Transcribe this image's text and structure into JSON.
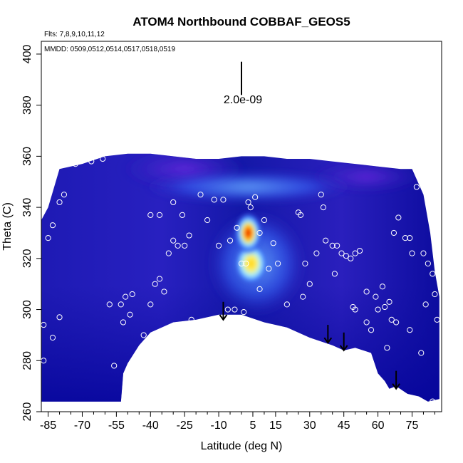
{
  "chart_data": {
    "type": "heatmap",
    "title": "ATOM4 Northbound COBBAF_GEOS5",
    "annotations": {
      "flights": "Flts: 7,8,9,10,11,12",
      "dates": "MMDD: 0509,0512,0514,0517,0518,0519",
      "scale_label": "2.0e-09"
    },
    "xlabel": "Latitude (deg N)",
    "ylabel": "Theta (C)",
    "xlim": [
      -88,
      88
    ],
    "ylim": [
      260,
      405
    ],
    "x_ticks": [
      -85,
      -70,
      -55,
      -40,
      -25,
      -10,
      5,
      15,
      30,
      45,
      60,
      75
    ],
    "x_tick_labels": [
      "-85",
      "-70",
      "-55",
      "-40",
      "-25",
      "-10",
      "5",
      "15",
      "30",
      "45",
      "60",
      "75"
    ],
    "x_minor_ticks": [
      -80,
      -75,
      -65,
      -60,
      -50,
      -45,
      -35,
      -30,
      -20,
      -15,
      -5,
      0,
      10,
      20,
      25,
      35,
      40,
      50,
      55,
      65,
      70,
      80,
      85
    ],
    "y_ticks": [
      260,
      280,
      300,
      320,
      340,
      360,
      380,
      400
    ],
    "y_tick_labels": [
      "260",
      "280",
      "300",
      "320",
      "340",
      "360",
      "380",
      "400"
    ],
    "scale_bar": {
      "x": 0,
      "y_top": 397,
      "y_bottom": 384
    },
    "colors": {
      "background_field": "#2a1fb8",
      "deep": "#0b0aa0",
      "plume_core": "#d40000",
      "plume_mid": "#ffe020",
      "plume_edge": "#5aa0ff",
      "sample_marker": "#ffffff"
    },
    "field_outline": {
      "top": [
        [
          -88,
          335
        ],
        [
          -85,
          340
        ],
        [
          -80,
          355
        ],
        [
          -70,
          357
        ],
        [
          -60,
          360
        ],
        [
          -50,
          361
        ],
        [
          -40,
          361
        ],
        [
          -30,
          360
        ],
        [
          -20,
          359
        ],
        [
          -10,
          359
        ],
        [
          0,
          360
        ],
        [
          10,
          360
        ],
        [
          20,
          359
        ],
        [
          30,
          359
        ],
        [
          40,
          358
        ],
        [
          50,
          357
        ],
        [
          60,
          356
        ],
        [
          70,
          355
        ],
        [
          75,
          355
        ],
        [
          80,
          345
        ],
        [
          83,
          330
        ],
        [
          85,
          315
        ],
        [
          87,
          305
        ]
      ],
      "bottom": [
        [
          87,
          265
        ],
        [
          82,
          264
        ],
        [
          78,
          266
        ],
        [
          73,
          267
        ],
        [
          68,
          270
        ],
        [
          65,
          269
        ],
        [
          63,
          272
        ],
        [
          60,
          275
        ],
        [
          57,
          283
        ],
        [
          50,
          285
        ],
        [
          45,
          284
        ],
        [
          40,
          286
        ],
        [
          30,
          289
        ],
        [
          20,
          293
        ],
        [
          10,
          295
        ],
        [
          0,
          298
        ],
        [
          -5,
          298
        ],
        [
          -10,
          298
        ],
        [
          -20,
          296
        ],
        [
          -30,
          295
        ],
        [
          -40,
          291
        ],
        [
          -45,
          286
        ],
        [
          -50,
          279
        ],
        [
          -52,
          275
        ],
        [
          -53,
          264
        ],
        [
          -60,
          264
        ],
        [
          -70,
          264
        ],
        [
          -80,
          264
        ],
        [
          -88,
          264
        ]
      ]
    },
    "plume": {
      "x": 3,
      "y_core": 330,
      "y_second": 318
    },
    "samples": [
      [
        -87,
        294
      ],
      [
        -87,
        280
      ],
      [
        -83,
        289
      ],
      [
        -80,
        297
      ],
      [
        -85,
        328
      ],
      [
        -83,
        333
      ],
      [
        -80,
        342
      ],
      [
        -78,
        345
      ],
      [
        -73,
        357
      ],
      [
        -68,
        360
      ],
      [
        -58,
        302
      ],
      [
        -56,
        278
      ],
      [
        -53,
        302
      ],
      [
        -51,
        305
      ],
      [
        -52,
        295
      ],
      [
        -49,
        298
      ],
      [
        -48,
        306
      ],
      [
        -50,
        276
      ],
      [
        -46,
        280
      ],
      [
        -43,
        290
      ],
      [
        -40,
        302
      ],
      [
        -38,
        310
      ],
      [
        -36,
        312
      ],
      [
        -34,
        307
      ],
      [
        -32,
        322
      ],
      [
        -30,
        327
      ],
      [
        -28,
        325
      ],
      [
        -26,
        337
      ],
      [
        -23,
        329
      ],
      [
        -40,
        337
      ],
      [
        -36,
        337
      ],
      [
        -30,
        342
      ],
      [
        -25,
        325
      ],
      [
        -22,
        296
      ],
      [
        -18,
        345
      ],
      [
        -15,
        335
      ],
      [
        -12,
        343
      ],
      [
        -10,
        325
      ],
      [
        -8,
        343
      ],
      [
        -5,
        327
      ],
      [
        -3,
        300
      ],
      [
        -2,
        332
      ],
      [
        0,
        296
      ],
      [
        1,
        299
      ],
      [
        3,
        342
      ],
      [
        4,
        340
      ],
      [
        6,
        344
      ],
      [
        8,
        330
      ],
      [
        10,
        335
      ],
      [
        14,
        326
      ],
      [
        16,
        318
      ],
      [
        20,
        302
      ],
      [
        25,
        338
      ],
      [
        26,
        337
      ],
      [
        28,
        318
      ],
      [
        30,
        310
      ],
      [
        33,
        322
      ],
      [
        35,
        345
      ],
      [
        37,
        327
      ],
      [
        40,
        325
      ],
      [
        42,
        325
      ],
      [
        44,
        322
      ],
      [
        46,
        321
      ],
      [
        48,
        320
      ],
      [
        50,
        322
      ],
      [
        52,
        323
      ],
      [
        49,
        301
      ],
      [
        50,
        300
      ],
      [
        55,
        307
      ],
      [
        57,
        292
      ],
      [
        55,
        295
      ],
      [
        59,
        305
      ],
      [
        60,
        300
      ],
      [
        62,
        309
      ],
      [
        63,
        301
      ],
      [
        64,
        285
      ],
      [
        65,
        303
      ],
      [
        66,
        296
      ],
      [
        67,
        330
      ],
      [
        68,
        295
      ],
      [
        69,
        336
      ],
      [
        72,
        328
      ],
      [
        74,
        328
      ],
      [
        75,
        322
      ],
      [
        77,
        348
      ],
      [
        78,
        352
      ],
      [
        80,
        322
      ],
      [
        82,
        318
      ],
      [
        84,
        314
      ],
      [
        85,
        306
      ],
      [
        79,
        283
      ],
      [
        81,
        302
      ],
      [
        74,
        292
      ],
      [
        -9,
        292
      ],
      [
        -6,
        300
      ],
      [
        0,
        318
      ],
      [
        2,
        318
      ],
      [
        8,
        308
      ],
      [
        12,
        316
      ],
      [
        27,
        305
      ],
      [
        36,
        340
      ],
      [
        41,
        314
      ],
      [
        -66,
        358
      ],
      [
        -61,
        359
      ],
      [
        61,
        265
      ],
      [
        72,
        264
      ],
      [
        79,
        355
      ],
      [
        84,
        264
      ],
      [
        86,
        296
      ],
      [
        55,
        275
      ]
    ],
    "arrows": [
      {
        "x": -8,
        "y_tail": 303,
        "y_head": 296
      },
      {
        "x": 38,
        "y_tail": 294,
        "y_head": 287
      },
      {
        "x": 45,
        "y_tail": 291,
        "y_head": 284
      },
      {
        "x": 68,
        "y_tail": 276,
        "y_head": 269
      }
    ]
  }
}
